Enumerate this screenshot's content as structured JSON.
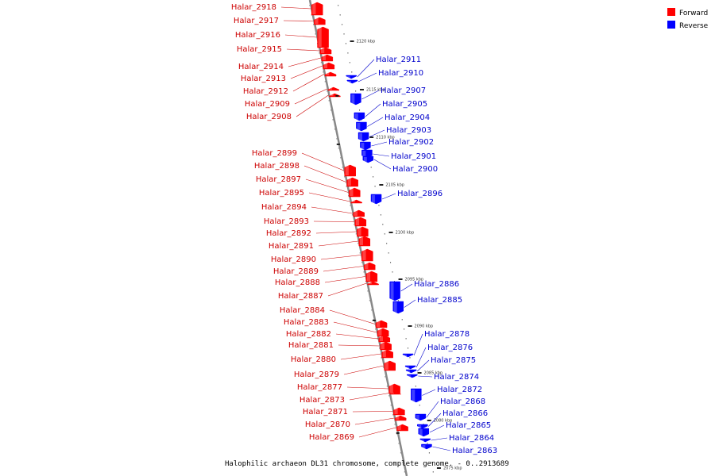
{
  "caption": "Halophilic archaeon DL31 chromosome, complete genome. - 0..2913689",
  "legend": {
    "forward": {
      "label": "Forward",
      "color": "#ff0000"
    },
    "reverse": {
      "label": "Reverse",
      "color": "#0000ff"
    }
  },
  "colors": {
    "forward_label": "#cc0000",
    "reverse_label": "#0000cc",
    "axis": "#888888"
  },
  "scale_labels": [
    "2120 kbp",
    "2115 kbp",
    "2110 kbp",
    "2105 kbp",
    "2100 kbp",
    "2095 kbp",
    "2090 kbp",
    "2085 kbp",
    "2080 kbp",
    "2075 kbp"
  ],
  "forward_genes": [
    "Halar_2918",
    "Halar_2917",
    "Halar_2916",
    "Halar_2915",
    "Halar_2914",
    "Halar_2913",
    "Halar_2912",
    "Halar_2909",
    "Halar_2908",
    "Halar_2899",
    "Halar_2898",
    "Halar_2897",
    "Halar_2895",
    "Halar_2894",
    "Halar_2893",
    "Halar_2892",
    "Halar_2891",
    "Halar_2890",
    "Halar_2889",
    "Halar_2888",
    "Halar_2887",
    "Halar_2884",
    "Halar_2883",
    "Halar_2882",
    "Halar_2881",
    "Halar_2880",
    "Halar_2879",
    "Halar_2877",
    "Halar_2873",
    "Halar_2871",
    "Halar_2870",
    "Halar_2869"
  ],
  "reverse_genes": [
    "Halar_2911",
    "Halar_2910",
    "Halar_2907",
    "Halar_2905",
    "Halar_2904",
    "Halar_2903",
    "Halar_2902",
    "Halar_2901",
    "Halar_2900",
    "Halar_2896",
    "Halar_2886",
    "Halar_2885",
    "Halar_2878",
    "Halar_2876",
    "Halar_2875",
    "Halar_2874",
    "Halar_2872",
    "Halar_2868",
    "Halar_2866",
    "Halar_2865",
    "Halar_2864",
    "Halar_2863"
  ]
}
